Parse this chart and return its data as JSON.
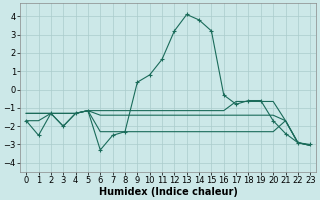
{
  "xlabel": "Humidex (Indice chaleur)",
  "x": [
    0,
    1,
    2,
    3,
    4,
    5,
    6,
    7,
    8,
    9,
    10,
    11,
    12,
    13,
    14,
    15,
    16,
    17,
    18,
    19,
    20,
    21,
    22,
    23
  ],
  "y_main": [
    -1.7,
    -2.5,
    -1.3,
    -2.0,
    -1.3,
    -1.15,
    -3.3,
    -2.5,
    -2.3,
    0.4,
    0.8,
    1.65,
    3.2,
    4.1,
    3.8,
    3.2,
    -0.3,
    -0.8,
    -0.6,
    -0.6,
    -1.7,
    -2.4,
    -2.9,
    -3.0
  ],
  "y_flat1": [
    -1.3,
    -1.3,
    -1.3,
    -1.3,
    -1.3,
    -1.15,
    -1.15,
    -1.15,
    -1.15,
    -1.15,
    -1.15,
    -1.15,
    -1.15,
    -1.15,
    -1.15,
    -1.15,
    -1.15,
    -0.65,
    -0.65,
    -0.65,
    -0.65,
    -1.7,
    -2.9,
    -3.05
  ],
  "y_flat2": [
    -1.3,
    -1.3,
    -1.3,
    -1.3,
    -1.3,
    -1.15,
    -1.4,
    -1.4,
    -1.4,
    -1.4,
    -1.4,
    -1.4,
    -1.4,
    -1.4,
    -1.4,
    -1.4,
    -1.4,
    -1.4,
    -1.4,
    -1.4,
    -1.4,
    -1.7,
    -2.9,
    -3.05
  ],
  "y_flat3": [
    -1.7,
    -1.7,
    -1.3,
    -2.0,
    -1.3,
    -1.15,
    -2.3,
    -2.3,
    -2.3,
    -2.3,
    -2.3,
    -2.3,
    -2.3,
    -2.3,
    -2.3,
    -2.3,
    -2.3,
    -2.3,
    -2.3,
    -2.3,
    -2.3,
    -1.7,
    -2.9,
    -3.05
  ],
  "xlim": [
    -0.5,
    23.5
  ],
  "ylim": [
    -4.5,
    4.7
  ],
  "yticks": [
    -4,
    -3,
    -2,
    -1,
    0,
    1,
    2,
    3,
    4
  ],
  "xticks": [
    0,
    1,
    2,
    3,
    4,
    5,
    6,
    7,
    8,
    9,
    10,
    11,
    12,
    13,
    14,
    15,
    16,
    17,
    18,
    19,
    20,
    21,
    22,
    23
  ],
  "bg_color": "#cce8e8",
  "grid_color": "#aacccc",
  "line_color": "#1a6b5a",
  "tick_fontsize": 6,
  "label_fontsize": 7
}
